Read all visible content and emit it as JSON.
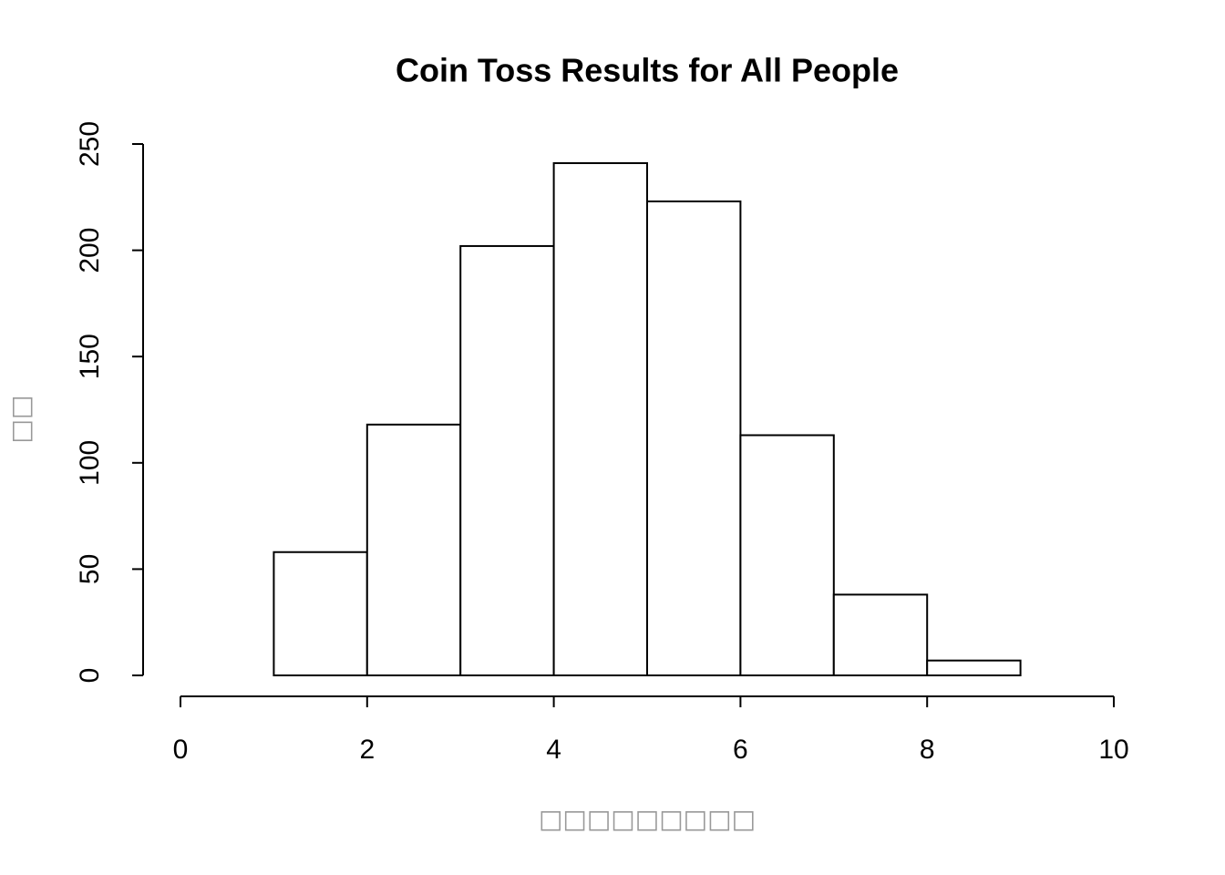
{
  "chart_data": {
    "type": "histogram",
    "title": "Coin Toss Results for All People",
    "x_label": "□□□□□□□□□",
    "y_label": "□□",
    "bins": [
      0,
      1,
      2,
      3,
      4,
      5,
      6,
      7,
      8,
      9,
      10
    ],
    "values": [
      0,
      58,
      118,
      202,
      241,
      223,
      113,
      38,
      7,
      0
    ],
    "color": "#ffffff",
    "xlim": [
      0,
      10
    ],
    "xticks": [
      0,
      2,
      4,
      6,
      8,
      10
    ],
    "ylim": [
      0,
      250
    ],
    "yticks": [
      0,
      50,
      100,
      150,
      200,
      250
    ]
  }
}
